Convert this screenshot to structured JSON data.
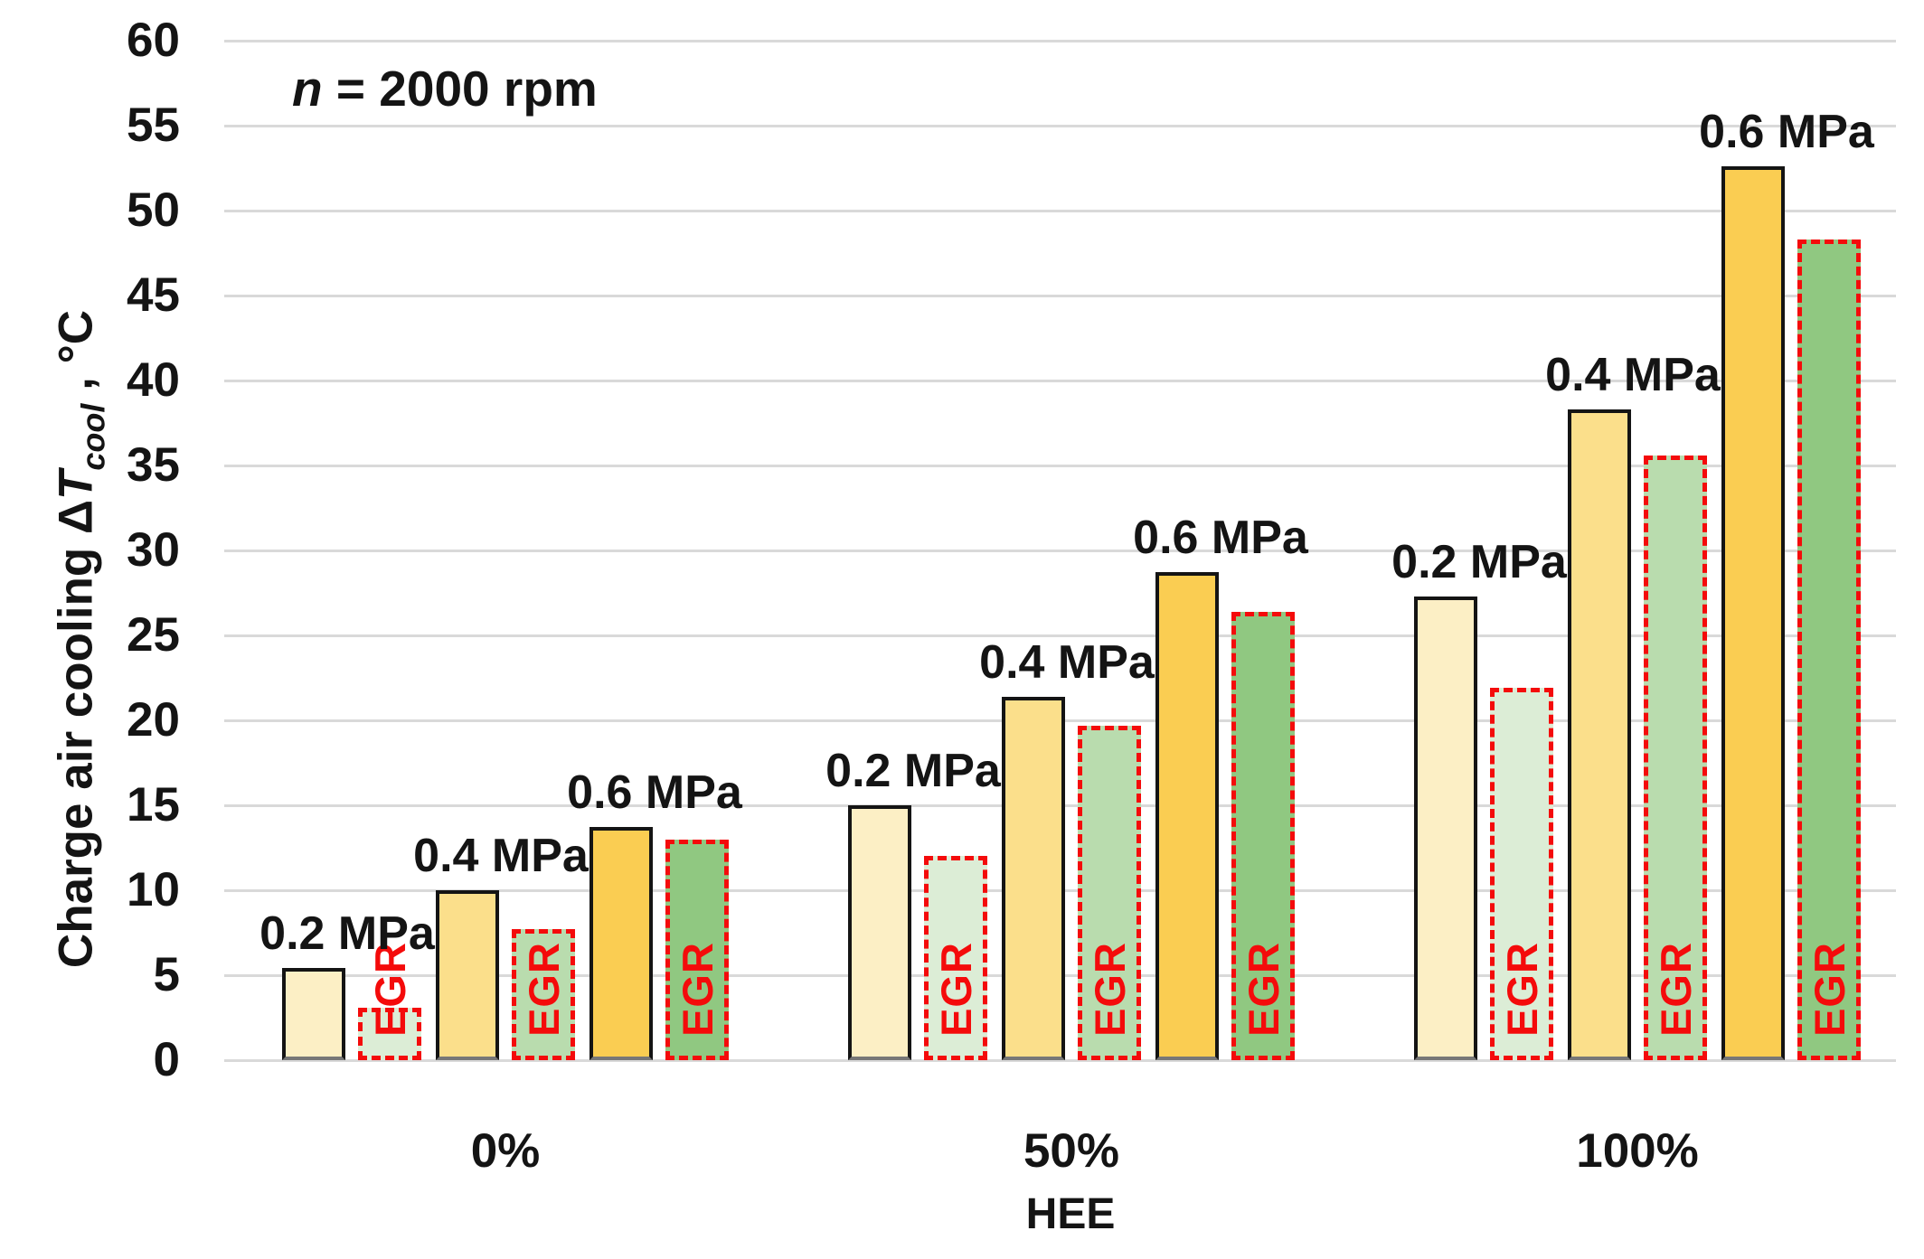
{
  "chart_data": {
    "type": "bar",
    "annotation": {
      "variable": "n",
      "rest": " = 2000 rpm"
    },
    "xlabel": "HEE",
    "ylabel": {
      "prefix": "Charge air cooling Δ",
      "symbol": "T",
      "subscript": "cool",
      "suffix": " , °C"
    },
    "ylim": [
      0,
      60
    ],
    "ytick_step": 5,
    "yticks": [
      0,
      5,
      10,
      15,
      20,
      25,
      30,
      35,
      40,
      45,
      50,
      55,
      60
    ],
    "grid": true,
    "legend": false,
    "categories": [
      "0%",
      "50%",
      "100%"
    ],
    "egr_label": "EGR",
    "pressure_levels": [
      "0.2 MPa",
      "0.4 MPa",
      "0.6 MPa"
    ],
    "groups": [
      {
        "category": "0%",
        "pairs": [
          {
            "label": "0.2 MPa",
            "value": 5.4,
            "egr_value": 3.1
          },
          {
            "label": "0.4 MPa",
            "value": 10.0,
            "egr_value": 7.7
          },
          {
            "label": "0.6 MPa",
            "value": 13.7,
            "egr_value": 13.0
          }
        ]
      },
      {
        "category": "50%",
        "pairs": [
          {
            "label": "0.2 MPa",
            "value": 15.0,
            "egr_value": 12.0
          },
          {
            "label": "0.4 MPa",
            "value": 21.4,
            "egr_value": 19.7
          },
          {
            "label": "0.6 MPa",
            "value": 28.7,
            "egr_value": 26.4
          }
        ]
      },
      {
        "category": "100%",
        "pairs": [
          {
            "label": "0.2 MPa",
            "value": 27.3,
            "egr_value": 21.9
          },
          {
            "label": "0.4 MPa",
            "value": 38.3,
            "egr_value": 35.6
          },
          {
            "label": "0.6 MPa",
            "value": 52.6,
            "egr_value": 48.3
          }
        ]
      }
    ],
    "colors": {
      "bars": [
        "#FCEFC5",
        "#FBDF8B",
        "#FACD52"
      ],
      "egr_bars": [
        "#DCEDD6",
        "#B9DCAE",
        "#90C881"
      ],
      "egr_border": "#F40B0B",
      "egr_text": "#F40B0B",
      "bar_border": "#141414",
      "gridline": "#D9D9D9",
      "text": "#141414"
    }
  }
}
